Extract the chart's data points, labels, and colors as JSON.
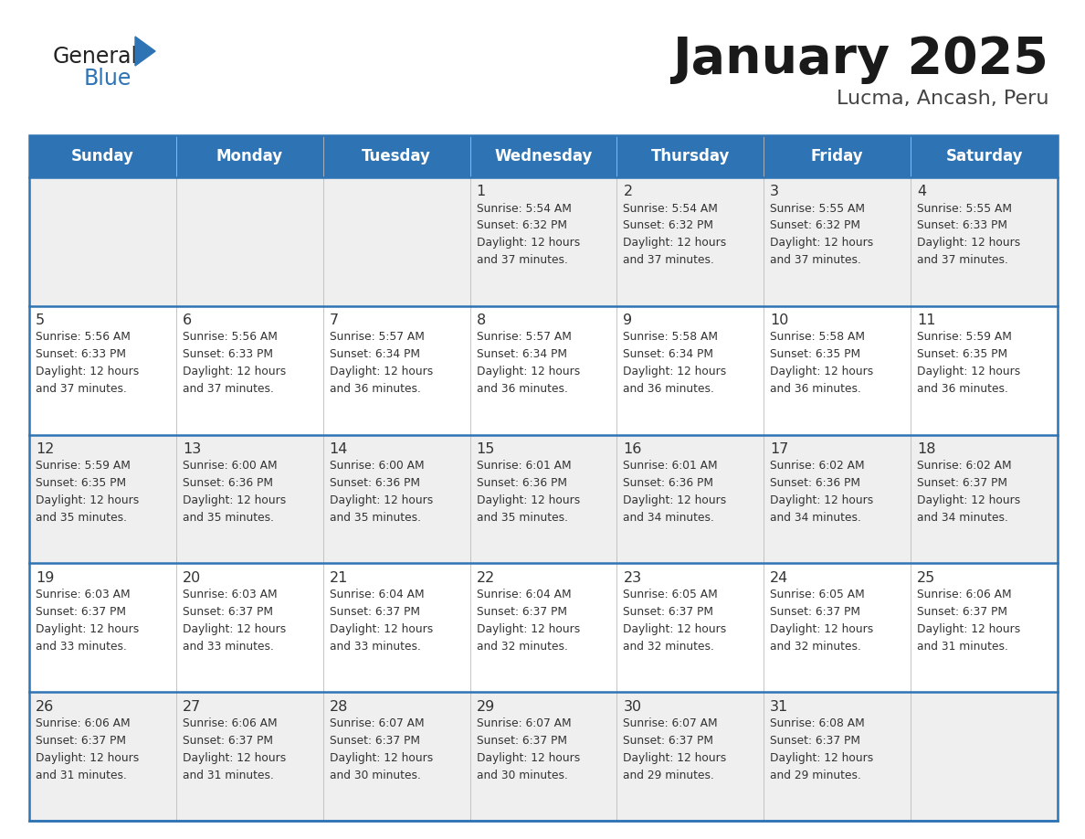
{
  "title": "January 2025",
  "subtitle": "Lucma, Ancash, Peru",
  "days_of_week": [
    "Sunday",
    "Monday",
    "Tuesday",
    "Wednesday",
    "Thursday",
    "Friday",
    "Saturday"
  ],
  "header_bg": "#2E74B5",
  "header_text": "#FFFFFF",
  "row_bg_even": "#EFEFEF",
  "row_bg_odd": "#FFFFFF",
  "border_color": "#2E74B5",
  "text_color": "#333333",
  "logo_general_color": "#222222",
  "logo_blue_color": "#2E74B5",
  "logo_triangle_color": "#2E74B5",
  "calendar_data": [
    [
      {
        "day": "",
        "sunrise": "",
        "sunset": "",
        "daylight": ""
      },
      {
        "day": "",
        "sunrise": "",
        "sunset": "",
        "daylight": ""
      },
      {
        "day": "",
        "sunrise": "",
        "sunset": "",
        "daylight": ""
      },
      {
        "day": "1",
        "sunrise": "5:54 AM",
        "sunset": "6:32 PM",
        "daylight": "12 hours and 37 minutes."
      },
      {
        "day": "2",
        "sunrise": "5:54 AM",
        "sunset": "6:32 PM",
        "daylight": "12 hours and 37 minutes."
      },
      {
        "day": "3",
        "sunrise": "5:55 AM",
        "sunset": "6:32 PM",
        "daylight": "12 hours and 37 minutes."
      },
      {
        "day": "4",
        "sunrise": "5:55 AM",
        "sunset": "6:33 PM",
        "daylight": "12 hours and 37 minutes."
      }
    ],
    [
      {
        "day": "5",
        "sunrise": "5:56 AM",
        "sunset": "6:33 PM",
        "daylight": "12 hours and 37 minutes."
      },
      {
        "day": "6",
        "sunrise": "5:56 AM",
        "sunset": "6:33 PM",
        "daylight": "12 hours and 37 minutes."
      },
      {
        "day": "7",
        "sunrise": "5:57 AM",
        "sunset": "6:34 PM",
        "daylight": "12 hours and 36 minutes."
      },
      {
        "day": "8",
        "sunrise": "5:57 AM",
        "sunset": "6:34 PM",
        "daylight": "12 hours and 36 minutes."
      },
      {
        "day": "9",
        "sunrise": "5:58 AM",
        "sunset": "6:34 PM",
        "daylight": "12 hours and 36 minutes."
      },
      {
        "day": "10",
        "sunrise": "5:58 AM",
        "sunset": "6:35 PM",
        "daylight": "12 hours and 36 minutes."
      },
      {
        "day": "11",
        "sunrise": "5:59 AM",
        "sunset": "6:35 PM",
        "daylight": "12 hours and 36 minutes."
      }
    ],
    [
      {
        "day": "12",
        "sunrise": "5:59 AM",
        "sunset": "6:35 PM",
        "daylight": "12 hours and 35 minutes."
      },
      {
        "day": "13",
        "sunrise": "6:00 AM",
        "sunset": "6:36 PM",
        "daylight": "12 hours and 35 minutes."
      },
      {
        "day": "14",
        "sunrise": "6:00 AM",
        "sunset": "6:36 PM",
        "daylight": "12 hours and 35 minutes."
      },
      {
        "day": "15",
        "sunrise": "6:01 AM",
        "sunset": "6:36 PM",
        "daylight": "12 hours and 35 minutes."
      },
      {
        "day": "16",
        "sunrise": "6:01 AM",
        "sunset": "6:36 PM",
        "daylight": "12 hours and 34 minutes."
      },
      {
        "day": "17",
        "sunrise": "6:02 AM",
        "sunset": "6:36 PM",
        "daylight": "12 hours and 34 minutes."
      },
      {
        "day": "18",
        "sunrise": "6:02 AM",
        "sunset": "6:37 PM",
        "daylight": "12 hours and 34 minutes."
      }
    ],
    [
      {
        "day": "19",
        "sunrise": "6:03 AM",
        "sunset": "6:37 PM",
        "daylight": "12 hours and 33 minutes."
      },
      {
        "day": "20",
        "sunrise": "6:03 AM",
        "sunset": "6:37 PM",
        "daylight": "12 hours and 33 minutes."
      },
      {
        "day": "21",
        "sunrise": "6:04 AM",
        "sunset": "6:37 PM",
        "daylight": "12 hours and 33 minutes."
      },
      {
        "day": "22",
        "sunrise": "6:04 AM",
        "sunset": "6:37 PM",
        "daylight": "12 hours and 32 minutes."
      },
      {
        "day": "23",
        "sunrise": "6:05 AM",
        "sunset": "6:37 PM",
        "daylight": "12 hours and 32 minutes."
      },
      {
        "day": "24",
        "sunrise": "6:05 AM",
        "sunset": "6:37 PM",
        "daylight": "12 hours and 32 minutes."
      },
      {
        "day": "25",
        "sunrise": "6:06 AM",
        "sunset": "6:37 PM",
        "daylight": "12 hours and 31 minutes."
      }
    ],
    [
      {
        "day": "26",
        "sunrise": "6:06 AM",
        "sunset": "6:37 PM",
        "daylight": "12 hours and 31 minutes."
      },
      {
        "day": "27",
        "sunrise": "6:06 AM",
        "sunset": "6:37 PM",
        "daylight": "12 hours and 31 minutes."
      },
      {
        "day": "28",
        "sunrise": "6:07 AM",
        "sunset": "6:37 PM",
        "daylight": "12 hours and 30 minutes."
      },
      {
        "day": "29",
        "sunrise": "6:07 AM",
        "sunset": "6:37 PM",
        "daylight": "12 hours and 30 minutes."
      },
      {
        "day": "30",
        "sunrise": "6:07 AM",
        "sunset": "6:37 PM",
        "daylight": "12 hours and 29 minutes."
      },
      {
        "day": "31",
        "sunrise": "6:08 AM",
        "sunset": "6:37 PM",
        "daylight": "12 hours and 29 minutes."
      },
      {
        "day": "",
        "sunrise": "",
        "sunset": "",
        "daylight": ""
      }
    ]
  ]
}
